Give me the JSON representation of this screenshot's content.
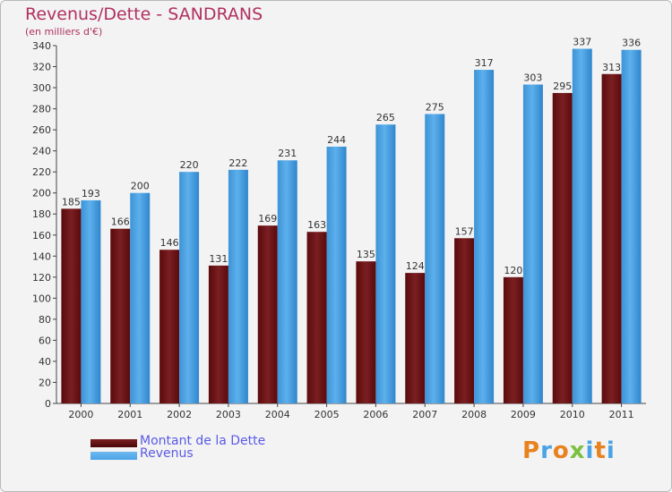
{
  "title": "Revenus/Dette - SANDRANS",
  "subtitle": "(en milliers d'€)",
  "colors": {
    "dette": "#7a1f22",
    "revenus": "#4aa3e6",
    "title": "#b03060",
    "legend_text": "#5a5ae6",
    "background": "#f3f3f3"
  },
  "legend": {
    "dette_label": "Montant de la Dette",
    "revenus_label": "Revenus"
  },
  "logo": {
    "text": "Proxiti"
  },
  "chart_data": {
    "type": "bar",
    "categories": [
      "2000",
      "2001",
      "2002",
      "2003",
      "2004",
      "2005",
      "2006",
      "2007",
      "2008",
      "2009",
      "2010",
      "2011"
    ],
    "series": [
      {
        "name": "Montant de la Dette",
        "values": [
          185,
          166,
          146,
          131,
          169,
          163,
          135,
          124,
          157,
          120,
          295,
          313
        ]
      },
      {
        "name": "Revenus",
        "values": [
          193,
          200,
          220,
          222,
          231,
          244,
          265,
          275,
          317,
          303,
          337,
          336
        ]
      }
    ],
    "ylim": [
      0,
      340
    ],
    "yticks": [
      0,
      20,
      40,
      60,
      80,
      100,
      120,
      140,
      160,
      180,
      200,
      220,
      240,
      260,
      280,
      300,
      320,
      340
    ],
    "grid": false,
    "legend_position": "bottom-left"
  }
}
